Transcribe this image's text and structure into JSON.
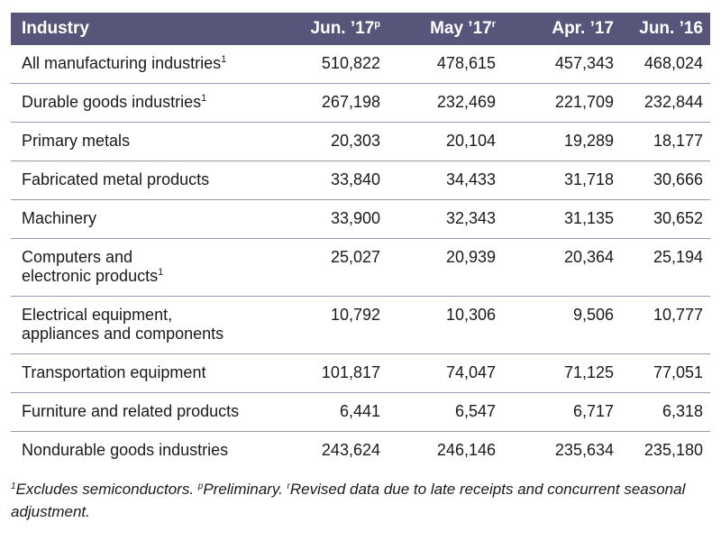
{
  "header": {
    "industry": "Industry",
    "col1": {
      "label": "Jun. ’17",
      "mark": "p"
    },
    "col2": {
      "label": "May ’17",
      "mark": "r"
    },
    "col3": {
      "label": "Apr. ’17"
    },
    "col4": {
      "label": "Jun. ’16"
    }
  },
  "rows": [
    {
      "line1": "All manufacturing industries",
      "line2": "",
      "mark": "1",
      "v": [
        "510,822",
        "478,615",
        "457,343",
        "468,024"
      ]
    },
    {
      "line1": "Durable goods industries",
      "line2": "",
      "mark": "1",
      "v": [
        "267,198",
        "232,469",
        "221,709",
        "232,844"
      ]
    },
    {
      "line1": "Primary metals",
      "line2": "",
      "mark": "",
      "v": [
        "20,303",
        "20,104",
        "19,289",
        "18,177"
      ]
    },
    {
      "line1": "Fabricated metal products",
      "line2": "",
      "mark": "",
      "v": [
        "33,840",
        "34,433",
        "31,718",
        "30,666"
      ]
    },
    {
      "line1": "Machinery",
      "line2": "",
      "mark": "",
      "v": [
        "33,900",
        "32,343",
        "31,135",
        "30,652"
      ]
    },
    {
      "line1": "Computers and",
      "line2": "electronic products",
      "mark": "1",
      "v": [
        "25,027",
        "20,939",
        "20,364",
        "25,194"
      ]
    },
    {
      "line1": "Electrical equipment,",
      "line2": "appliances and components",
      "mark": "",
      "v": [
        "10,792",
        "10,306",
        "9,506",
        "10,777"
      ]
    },
    {
      "line1": "Transportation equipment",
      "line2": "",
      "mark": "",
      "v": [
        "101,817",
        "74,047",
        "71,125",
        "77,051"
      ]
    },
    {
      "line1": "Furniture and related products",
      "line2": "",
      "mark": "",
      "v": [
        "6,441",
        "6,547",
        "6,717",
        "6,318"
      ]
    },
    {
      "line1": "Nondurable goods industries",
      "line2": "",
      "mark": "",
      "v": [
        "243,624",
        "246,146",
        "235,634",
        "235,180"
      ]
    }
  ],
  "footnote": {
    "m1": "1",
    "t1": "Excludes semiconductors. ",
    "m2": "p",
    "t2": "Preliminary. ",
    "m3": "r",
    "t3": "Revised data due to late receipts and concurrent seasonal adjustment."
  },
  "colors": {
    "header_bg": "#57557a",
    "header_text": "#ffffff",
    "row_divider": "#9a98b6"
  }
}
